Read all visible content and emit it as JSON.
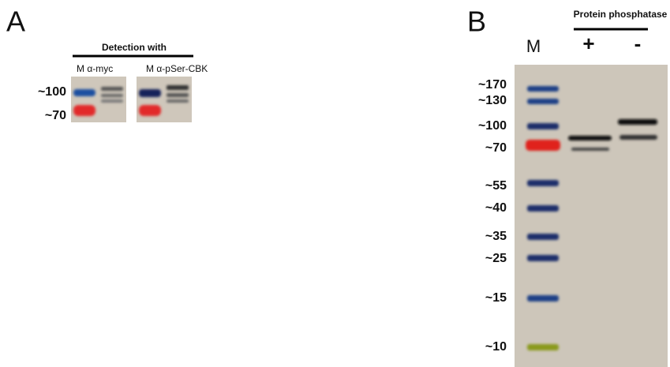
{
  "panel_a": {
    "label": "A",
    "header": "Detection with",
    "lane_labels": [
      "M  α-myc",
      "M α-pSer-CBK"
    ],
    "markers": [
      "~100",
      "~70"
    ]
  },
  "panel_b": {
    "label": "B",
    "header": "Protein phosphatase",
    "lane_labels": [
      "M",
      "+",
      "-"
    ],
    "markers": [
      "~170",
      "~130",
      "~100",
      "~70",
      "~55",
      "~40",
      "~35",
      "~25",
      "~15",
      "~10"
    ]
  }
}
